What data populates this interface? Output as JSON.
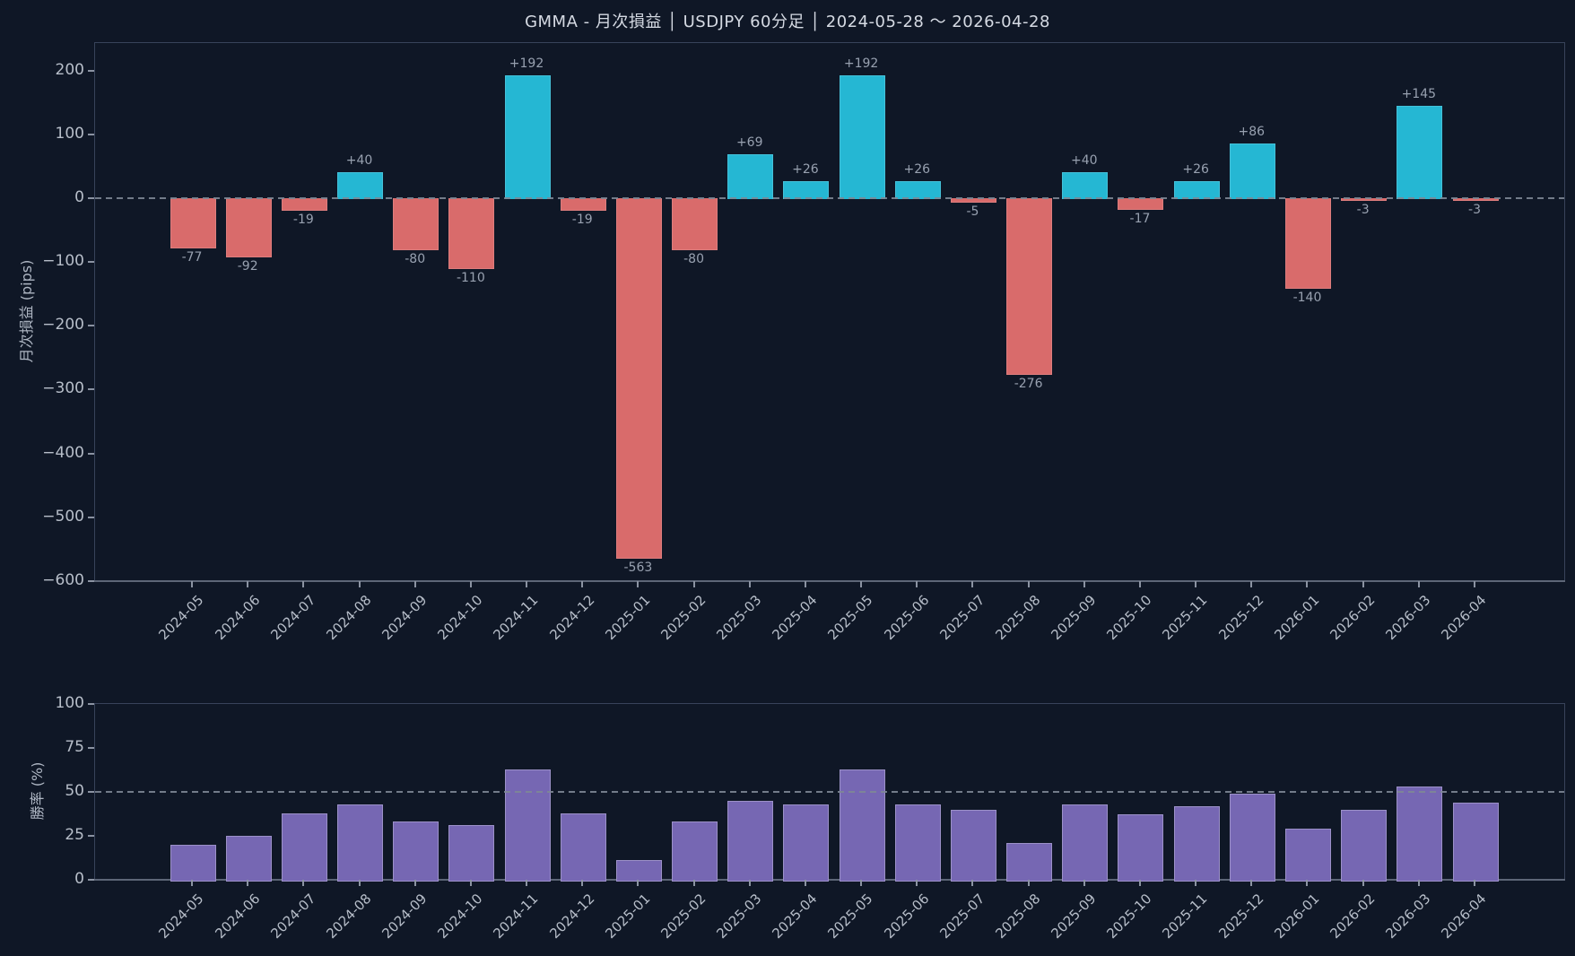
{
  "title": "GMMA - 月次損益 │ USDJPY 60分足 │ 2024-05-28 〜 2026-04-28",
  "chart_data": [
    {
      "type": "bar",
      "name": "monthly-pnl",
      "ylabel": "月次損益 (pips)",
      "categories": [
        "2024-05",
        "2024-06",
        "2024-07",
        "2024-08",
        "2024-09",
        "2024-10",
        "2024-11",
        "2024-12",
        "2025-01",
        "2025-02",
        "2025-03",
        "2025-04",
        "2025-05",
        "2025-06",
        "2025-07",
        "2025-08",
        "2025-09",
        "2025-10",
        "2025-11",
        "2025-12",
        "2026-01",
        "2026-02",
        "2026-03",
        "2026-04"
      ],
      "values": [
        -77,
        -92,
        -19,
        40,
        -80,
        -110,
        192,
        -19,
        -563,
        -80,
        69,
        26,
        192,
        26,
        -5,
        -276,
        40,
        -17,
        26,
        86,
        -140,
        -3,
        145,
        -3
      ],
      "bar_labels": [
        "-77",
        "-92",
        "-19",
        "+40",
        "-80",
        "-110",
        "+192",
        "-19",
        "-563",
        "-80",
        "+69",
        "+26",
        "+192",
        "+26",
        "-5",
        "-276",
        "+40",
        "-17",
        "+26",
        "+86",
        "-140",
        "-3",
        "+145",
        "-3"
      ],
      "ylim": [
        -600,
        243
      ],
      "yticks": [
        200,
        100,
        0,
        -100,
        -200,
        -300,
        -400,
        -500,
        -600
      ],
      "zero_line": {
        "y": 0,
        "style": "dashed"
      },
      "grid": false,
      "legend": "none",
      "colors": {
        "positive": "#25b7d3",
        "negative": "#d96b6b"
      }
    },
    {
      "type": "bar",
      "name": "win-rate",
      "ylabel": "勝率 (%)",
      "categories": [
        "2024-05",
        "2024-06",
        "2024-07",
        "2024-08",
        "2024-09",
        "2024-10",
        "2024-11",
        "2024-12",
        "2025-01",
        "2025-02",
        "2025-03",
        "2025-04",
        "2025-05",
        "2025-06",
        "2025-07",
        "2025-08",
        "2025-09",
        "2025-10",
        "2025-11",
        "2025-12",
        "2026-01",
        "2026-02",
        "2026-03",
        "2026-04"
      ],
      "values": [
        20,
        25,
        38,
        43,
        33,
        31,
        63,
        38,
        11,
        33,
        45,
        43,
        63,
        43,
        40,
        21,
        43,
        37,
        42,
        49,
        29,
        40,
        53,
        44
      ],
      "ylim": [
        0,
        100
      ],
      "yticks": [
        100,
        75,
        50,
        25,
        0
      ],
      "ref_line": {
        "y": 50,
        "style": "dashed"
      },
      "grid": false,
      "legend": "none",
      "colors": {
        "bar": "#7667b3"
      }
    }
  ]
}
